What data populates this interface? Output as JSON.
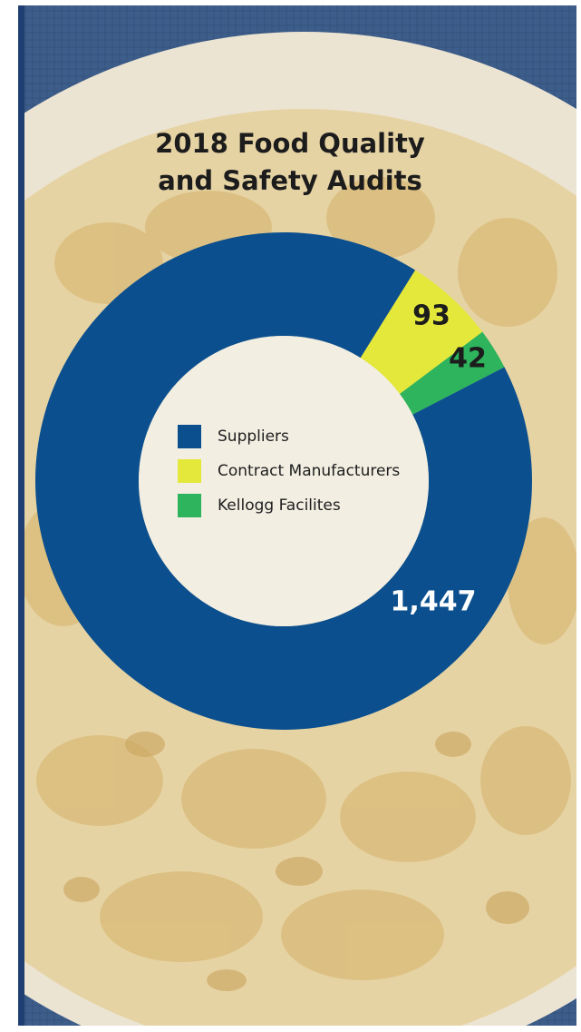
{
  "chart_data": {
    "type": "pie",
    "donut": true,
    "title": "2018 Food Quality\nand Safety Audits",
    "series": [
      {
        "name": "Suppliers",
        "color": "#0b4f8e",
        "values": [
          1447
        ],
        "value_labels": [
          "1,447"
        ]
      },
      {
        "name": "Contract Manufacturers",
        "color": "#e4e83a",
        "values": [
          93
        ],
        "value_labels": [
          "93"
        ]
      },
      {
        "name": "Kellogg Facilites",
        "color": "#2db45c",
        "values": [
          42
        ],
        "value_labels": [
          "42"
        ]
      }
    ]
  }
}
